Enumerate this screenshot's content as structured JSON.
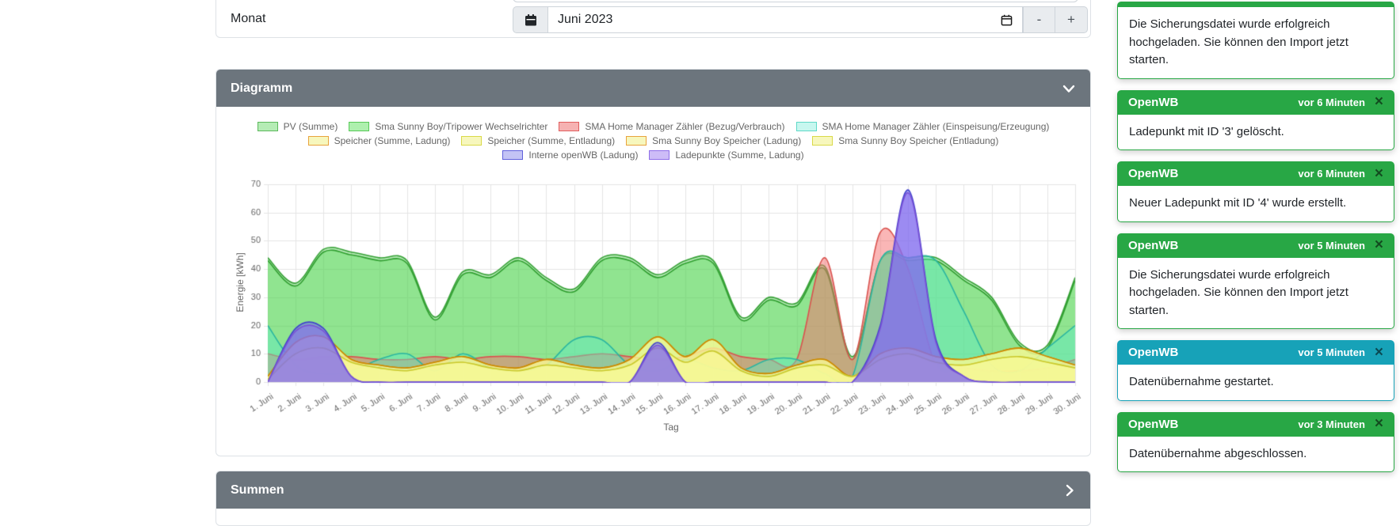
{
  "month_form": {
    "label": "Monat",
    "value": "Juni 2023",
    "decrement_label": "-",
    "increment_label": "+"
  },
  "diagram_panel": {
    "title": "Diagramm"
  },
  "summen_panel": {
    "title": "Summen"
  },
  "colors": {
    "success": "#28a745",
    "info": "#17a2b8",
    "panel_header": "#6c757d",
    "grid": "#e5e5e5",
    "axis_text": "#666666"
  },
  "chart_data": {
    "type": "area",
    "title": "",
    "xlabel": "Tag",
    "ylabel": "Energie [kWh]",
    "ylim": [
      0,
      70
    ],
    "ytick_step": 10,
    "grid": true,
    "legend_position": "top",
    "categories": [
      "1. Juni",
      "2. Juni",
      "3. Juni",
      "4. Juni",
      "5. Juni",
      "6. Juni",
      "7. Juni",
      "8. Juni",
      "9. Juni",
      "10. Juni",
      "11. Juni",
      "12. Juni",
      "13. Juni",
      "14. Juni",
      "15. Juni",
      "16. Juni",
      "17. Juni",
      "18. Juni",
      "19. Juni",
      "20. Juni",
      "21. Juni",
      "22. Juni",
      "23. Juni",
      "24. Juni",
      "25. Juni",
      "26. Juni",
      "27. Juni",
      "28. Juni",
      "29. Juni",
      "30. Juni"
    ],
    "series": [
      {
        "name": "PV (Summe)",
        "legend_row": 1,
        "stroke": "#35a035",
        "fill": "rgba(70,200,70,0.40)",
        "legend_fill": "#b5ecb5",
        "legend_stroke": "#5cb85c",
        "values": [
          44,
          35,
          47,
          46,
          44,
          43,
          23,
          39,
          38,
          44,
          37,
          33,
          44,
          44,
          38,
          43,
          43,
          23,
          30,
          28,
          41,
          9,
          43,
          44,
          44,
          37,
          30,
          14,
          13,
          37
        ]
      },
      {
        "name": "Sma Sunny Boy/Tripower Wechselrichter",
        "legend_row": 1,
        "stroke": "#2f9e2f",
        "fill": "rgba(90,220,90,0.40)",
        "legend_fill": "#aef0ae",
        "legend_stroke": "#57c957",
        "values": [
          43,
          34,
          46,
          45,
          43,
          42,
          22,
          38,
          37,
          43,
          36,
          32,
          43,
          43,
          37,
          42,
          42,
          22,
          29,
          27,
          40,
          8,
          43,
          43,
          43,
          36,
          29,
          13,
          12,
          36
        ]
      },
      {
        "name": "SMA Home Manager Zähler (Bezug/Verbrauch)",
        "legend_row": 1,
        "stroke": "#d9534f",
        "fill": "rgba(245,110,110,0.50)",
        "legend_fill": "#f6b2b2",
        "legend_stroke": "#e05d5d",
        "values": [
          10,
          8,
          9,
          9,
          8,
          8,
          9,
          8,
          9,
          9,
          8,
          9,
          10,
          9,
          8,
          9,
          12,
          9,
          8,
          8,
          44,
          8,
          53,
          40,
          6,
          5,
          4,
          4,
          5,
          8
        ]
      },
      {
        "name": "SMA Home Manager Zähler (Einspeisung/Erzeugung)",
        "legend_row": 1,
        "stroke": "#2ab5a0",
        "fill": "rgba(90,235,195,0.45)",
        "legend_fill": "#c7f7ef",
        "legend_stroke": "#5fd9c8",
        "values": [
          20,
          6,
          3,
          4,
          8,
          10,
          4,
          10,
          5,
          4,
          6,
          15,
          15,
          6,
          4,
          8,
          5,
          4,
          8,
          8,
          3,
          2,
          43,
          44,
          43,
          25,
          6,
          4,
          12,
          20
        ]
      },
      {
        "name": "Speicher (Summe, Ladung)",
        "legend_row": 2,
        "stroke": "#cc8a00",
        "fill": "rgba(250,250,150,0.55)",
        "legend_fill": "#f7f7bd",
        "legend_stroke": "#e8a33d",
        "values": [
          2,
          14,
          16,
          8,
          6,
          5,
          7,
          9,
          6,
          5,
          8,
          6,
          5,
          8,
          16,
          9,
          15,
          5,
          3,
          6,
          8,
          2,
          10,
          12,
          9,
          8,
          10,
          12,
          9,
          6
        ]
      },
      {
        "name": "Speicher (Summe, Entladung)",
        "legend_row": 2,
        "stroke": "#c9c92e",
        "fill": "rgba(250,250,150,0.50)",
        "legend_fill": "#f7f7bd",
        "legend_stroke": "#d9d948",
        "values": [
          1,
          10,
          12,
          7,
          5,
          4,
          6,
          7,
          5,
          4,
          6,
          5,
          4,
          6,
          12,
          7,
          11,
          4,
          2,
          5,
          6,
          2,
          8,
          10,
          7,
          6,
          8,
          9,
          7,
          5
        ]
      },
      {
        "name": "Sma Sunny Boy Speicher (Ladung)",
        "legend_row": 2,
        "stroke": "#cc8a00",
        "fill": "rgba(250,250,150,0.55)",
        "legend_fill": "#f7f7bd",
        "legend_stroke": "#e8a33d",
        "values": [
          2,
          14,
          16,
          8,
          6,
          5,
          7,
          9,
          6,
          5,
          8,
          6,
          5,
          8,
          16,
          9,
          15,
          5,
          3,
          6,
          8,
          2,
          10,
          12,
          9,
          8,
          10,
          12,
          9,
          6
        ]
      },
      {
        "name": "Sma Sunny Boy Speicher (Entladung)",
        "legend_row": 2,
        "stroke": "#c9c92e",
        "fill": "rgba(250,250,150,0.50)",
        "legend_fill": "#f7f7bd",
        "legend_stroke": "#d9d948",
        "values": [
          1,
          10,
          12,
          7,
          5,
          4,
          6,
          7,
          5,
          4,
          6,
          5,
          4,
          6,
          12,
          7,
          11,
          4,
          2,
          5,
          6,
          2,
          8,
          10,
          7,
          6,
          8,
          9,
          7,
          5
        ]
      },
      {
        "name": "Interne openWB (Ladung)",
        "legend_row": 3,
        "stroke": "#4141cc",
        "fill": "rgba(110,110,235,0.55)",
        "legend_fill": "#c3c3f5",
        "legend_stroke": "#6060db",
        "values": [
          0,
          19,
          19,
          2,
          0,
          0,
          0,
          0,
          0,
          0,
          0,
          0,
          0,
          0,
          14,
          0,
          0,
          0,
          0,
          0,
          0,
          0,
          20,
          68,
          15,
          2,
          0,
          0,
          0,
          0
        ]
      },
      {
        "name": "Ladepunkte (Summe, Ladung)",
        "legend_row": 3,
        "stroke": "#7a52d6",
        "fill": "rgba(140,110,240,0.55)",
        "legend_fill": "#cdbcf7",
        "legend_stroke": "#8f6fe8",
        "values": [
          0,
          18,
          18,
          2,
          0,
          0,
          0,
          0,
          0,
          0,
          0,
          0,
          0,
          0,
          13,
          0,
          0,
          0,
          0,
          0,
          0,
          0,
          19,
          67,
          14,
          2,
          0,
          0,
          0,
          0
        ]
      }
    ]
  },
  "toasts": [
    {
      "variant": "success",
      "title": "",
      "time": "",
      "close_glyph": "×",
      "message": "Die Sicherungsdatei wurde erfolgreich hochgeladen. Sie können den Import jetzt starten."
    },
    {
      "variant": "success",
      "title": "OpenWB",
      "time": "vor 6 Minuten",
      "close_glyph": "×",
      "message": "Ladepunkt mit ID '3' gelöscht."
    },
    {
      "variant": "success",
      "title": "OpenWB",
      "time": "vor 6 Minuten",
      "close_glyph": "×",
      "message": "Neuer Ladepunkt mit ID '4' wurde erstellt."
    },
    {
      "variant": "success",
      "title": "OpenWB",
      "time": "vor 5 Minuten",
      "close_glyph": "×",
      "message": "Die Sicherungsdatei wurde erfolgreich hochgeladen. Sie können den Import jetzt starten."
    },
    {
      "variant": "info",
      "title": "OpenWB",
      "time": "vor 5 Minuten",
      "close_glyph": "×",
      "message": "Datenübernahme gestartet."
    },
    {
      "variant": "success",
      "title": "OpenWB",
      "time": "vor 3 Minuten",
      "close_glyph": "×",
      "message": "Datenübernahme abgeschlossen."
    }
  ]
}
